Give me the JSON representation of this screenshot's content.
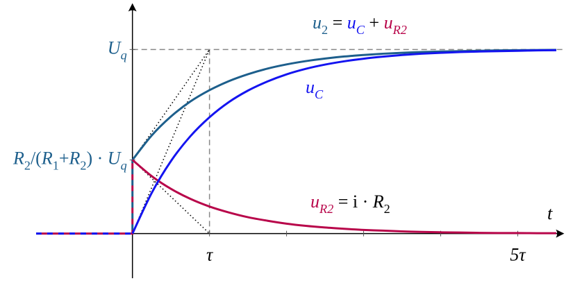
{
  "chart_data": {
    "type": "line",
    "x": [
      -1.25,
      0,
      0,
      0.25,
      0.5,
      0.75,
      1,
      1.25,
      1.5,
      1.75,
      2,
      2.25,
      2.5,
      2.75,
      3,
      3.25,
      3.5,
      3.75,
      4,
      4.25,
      4.5,
      4.75,
      5,
      5.25,
      5.5
    ],
    "series": [
      {
        "name": "u2 = uC + uR2",
        "color": "#1d5f8c",
        "values": [
          0,
          0,
          0.4,
          0.533,
          0.636,
          0.717,
          0.779,
          0.828,
          0.866,
          0.896,
          0.919,
          0.937,
          0.951,
          0.962,
          0.97,
          0.977,
          0.982,
          0.986,
          0.989,
          0.991,
          0.993,
          0.995,
          0.996,
          0.997,
          0.998
        ]
      },
      {
        "name": "uC",
        "color": "#1414f0",
        "values": [
          0,
          0,
          0,
          0.221,
          0.394,
          0.528,
          0.632,
          0.714,
          0.777,
          0.826,
          0.865,
          0.895,
          0.918,
          0.936,
          0.95,
          0.961,
          0.97,
          0.977,
          0.982,
          0.986,
          0.989,
          0.991,
          0.993,
          0.995,
          0.996
        ]
      },
      {
        "name": "uR2 = i · R2",
        "color": "#b8064a",
        "values": [
          0,
          0,
          0.4,
          0.312,
          0.243,
          0.189,
          0.147,
          0.115,
          0.089,
          0.07,
          0.054,
          0.042,
          0.033,
          0.026,
          0.02,
          0.016,
          0.012,
          0.009,
          0.007,
          0.006,
          0.004,
          0.003,
          0.003,
          0.002,
          0.002
        ]
      }
    ],
    "x_label": "t",
    "xlim": [
      -1.25,
      5.6
    ],
    "ylim": [
      -0.25,
      1.25
    ],
    "xticks": [
      {
        "value": 1,
        "label": "τ"
      },
      {
        "value": 5,
        "label": "5τ"
      }
    ],
    "xminor_ticks": [
      2,
      3,
      4
    ],
    "yticks": [
      {
        "value": 0.4,
        "label": "R2/(R1+R2) · Uq"
      },
      {
        "value": 1,
        "label": "Uq"
      }
    ]
  }
}
